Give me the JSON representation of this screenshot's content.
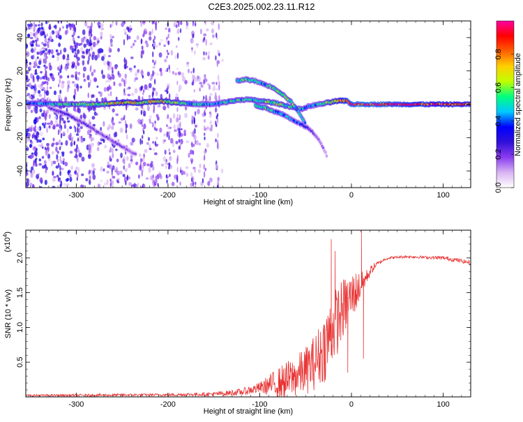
{
  "title": "C2E3.2025.002.23.11.R12",
  "chart_data": [
    {
      "type": "heatmap",
      "xlabel": "Height of straight line (km)",
      "ylabel": "Frequency (Hz)",
      "xlim": [
        -355,
        130
      ],
      "ylim": [
        -50,
        50
      ],
      "x_ticks": [
        -300,
        -200,
        -100,
        0,
        100
      ],
      "x_tick_labels": [
        "-300",
        "-200",
        "-100",
        "0",
        "100"
      ],
      "y_ticks": [
        -40,
        -20,
        0,
        20,
        40
      ],
      "y_tick_labels": [
        "-40",
        "-20",
        "0",
        "20",
        "40"
      ],
      "colorbar": {
        "label": "Normalized spectral amplitude",
        "range": [
          0,
          1
        ],
        "ticks": [
          0.0,
          0.2,
          0.4,
          0.6,
          0.8
        ],
        "tick_labels": [
          "0.0",
          "0.2",
          "0.4",
          "0.6",
          "0.8"
        ],
        "colors": [
          "#ffffff",
          "#d8b4f2",
          "#8a3cf0",
          "#3010d8",
          "#0000ff",
          "#00c8ff",
          "#00ff80",
          "#c0ff00",
          "#ffd000",
          "#ff6000",
          "#ff0000",
          "#ff00a0"
        ]
      },
      "tracks": [
        {
          "x": [
            -355,
            -330,
            -300,
            -270,
            -250,
            -230,
            -210,
            -190,
            -170,
            -150,
            -130,
            -115,
            -100,
            -85,
            -70,
            -55,
            -45,
            -35,
            -25,
            -15,
            -5,
            0,
            20,
            60,
            100,
            130
          ],
          "y": [
            1,
            0,
            0,
            0,
            1,
            1,
            2,
            1,
            0,
            0,
            2,
            3,
            2,
            1,
            -1,
            -3,
            -1,
            0,
            1,
            2,
            2,
            0,
            0,
            0,
            0,
            0
          ],
          "amp": [
            0.35,
            0.45,
            0.5,
            0.55,
            0.7,
            0.6,
            0.65,
            0.55,
            0.45,
            0.4,
            0.5,
            0.45,
            0.5,
            0.55,
            0.5,
            0.45,
            0.4,
            0.45,
            0.55,
            0.7,
            0.85,
            0.9,
            0.9,
            0.85,
            0.8,
            0.75
          ]
        },
        {
          "x": [
            -125,
            -115,
            -105,
            -95,
            -85,
            -75,
            -65,
            -57,
            -50
          ],
          "y": [
            14,
            15,
            14,
            12,
            10,
            6,
            1,
            -5,
            -12
          ],
          "amp": [
            0.45,
            0.5,
            0.45,
            0.45,
            0.5,
            0.55,
            0.5,
            0.45,
            0.4
          ]
        },
        {
          "x": [
            -105,
            -95,
            -85,
            -75,
            -65,
            -55,
            -48,
            -42,
            -36,
            -30,
            -26
          ],
          "y": [
            -0.5,
            -2,
            -4,
            -6,
            -9,
            -12,
            -14,
            -17,
            -21,
            -27,
            -32
          ],
          "amp": [
            0.5,
            0.5,
            0.45,
            0.45,
            0.4,
            0.35,
            0.3,
            0.22,
            0.18,
            0.14,
            0.1
          ]
        },
        {
          "x": [
            -330,
            -310,
            -290,
            -275,
            -260,
            -245,
            -235
          ],
          "y": [
            -2,
            -6,
            -12,
            -17,
            -22,
            -27,
            -30
          ],
          "amp": [
            0.22,
            0.25,
            0.22,
            0.2,
            0.2,
            0.18,
            0.15
          ]
        }
      ]
    },
    {
      "type": "line",
      "xlabel": "Height of straight line (km)",
      "ylabel": "SNR (10 * v/v)",
      "y_multiplier": "(x10",
      "y_multiplier_exp": "4",
      "y_multiplier_close": ")",
      "xlim": [
        -355,
        130
      ],
      "ylim": [
        0,
        2.4
      ],
      "x_ticks": [
        -300,
        -200,
        -100,
        0,
        100
      ],
      "x_tick_labels": [
        "-300",
        "-200",
        "-100",
        "0",
        "100"
      ],
      "y_ticks": [
        0.5,
        1.0,
        1.5,
        2.0
      ],
      "y_tick_labels": [
        "0.5",
        "1.0",
        "1.5",
        "2.0"
      ],
      "color": "#e83030",
      "envelope": {
        "x": [
          -355,
          -200,
          -150,
          -120,
          -100,
          -90,
          -80,
          -70,
          -60,
          -50,
          -40,
          -30,
          -25,
          -20,
          -15,
          -10,
          -5,
          0,
          5,
          10,
          15,
          20,
          25,
          30,
          35,
          40,
          60,
          80,
          100,
          115,
          130
        ],
        "mid": [
          0.02,
          0.03,
          0.04,
          0.07,
          0.13,
          0.17,
          0.2,
          0.24,
          0.3,
          0.38,
          0.5,
          0.7,
          0.85,
          1.0,
          1.12,
          1.25,
          1.35,
          1.45,
          1.52,
          1.6,
          1.7,
          1.8,
          1.88,
          1.93,
          1.97,
          2.0,
          2.02,
          2.01,
          2.0,
          1.97,
          1.93
        ],
        "spread": [
          0.015,
          0.02,
          0.03,
          0.05,
          0.08,
          0.15,
          0.22,
          0.28,
          0.3,
          0.35,
          0.4,
          0.5,
          0.55,
          0.5,
          0.5,
          0.45,
          0.4,
          0.35,
          0.3,
          0.2,
          0.12,
          0.08,
          0.05,
          0.03,
          0.02,
          0.02,
          0.02,
          0.02,
          0.03,
          0.03,
          0.03
        ]
      },
      "spikes": [
        {
          "x": -22,
          "y": 2.27
        },
        {
          "x": -18,
          "y": 2.1
        },
        {
          "x": 11,
          "y": 2.4
        },
        {
          "x": 13,
          "y": 0.55
        },
        {
          "x": -4,
          "y": 0.35
        }
      ]
    }
  ]
}
